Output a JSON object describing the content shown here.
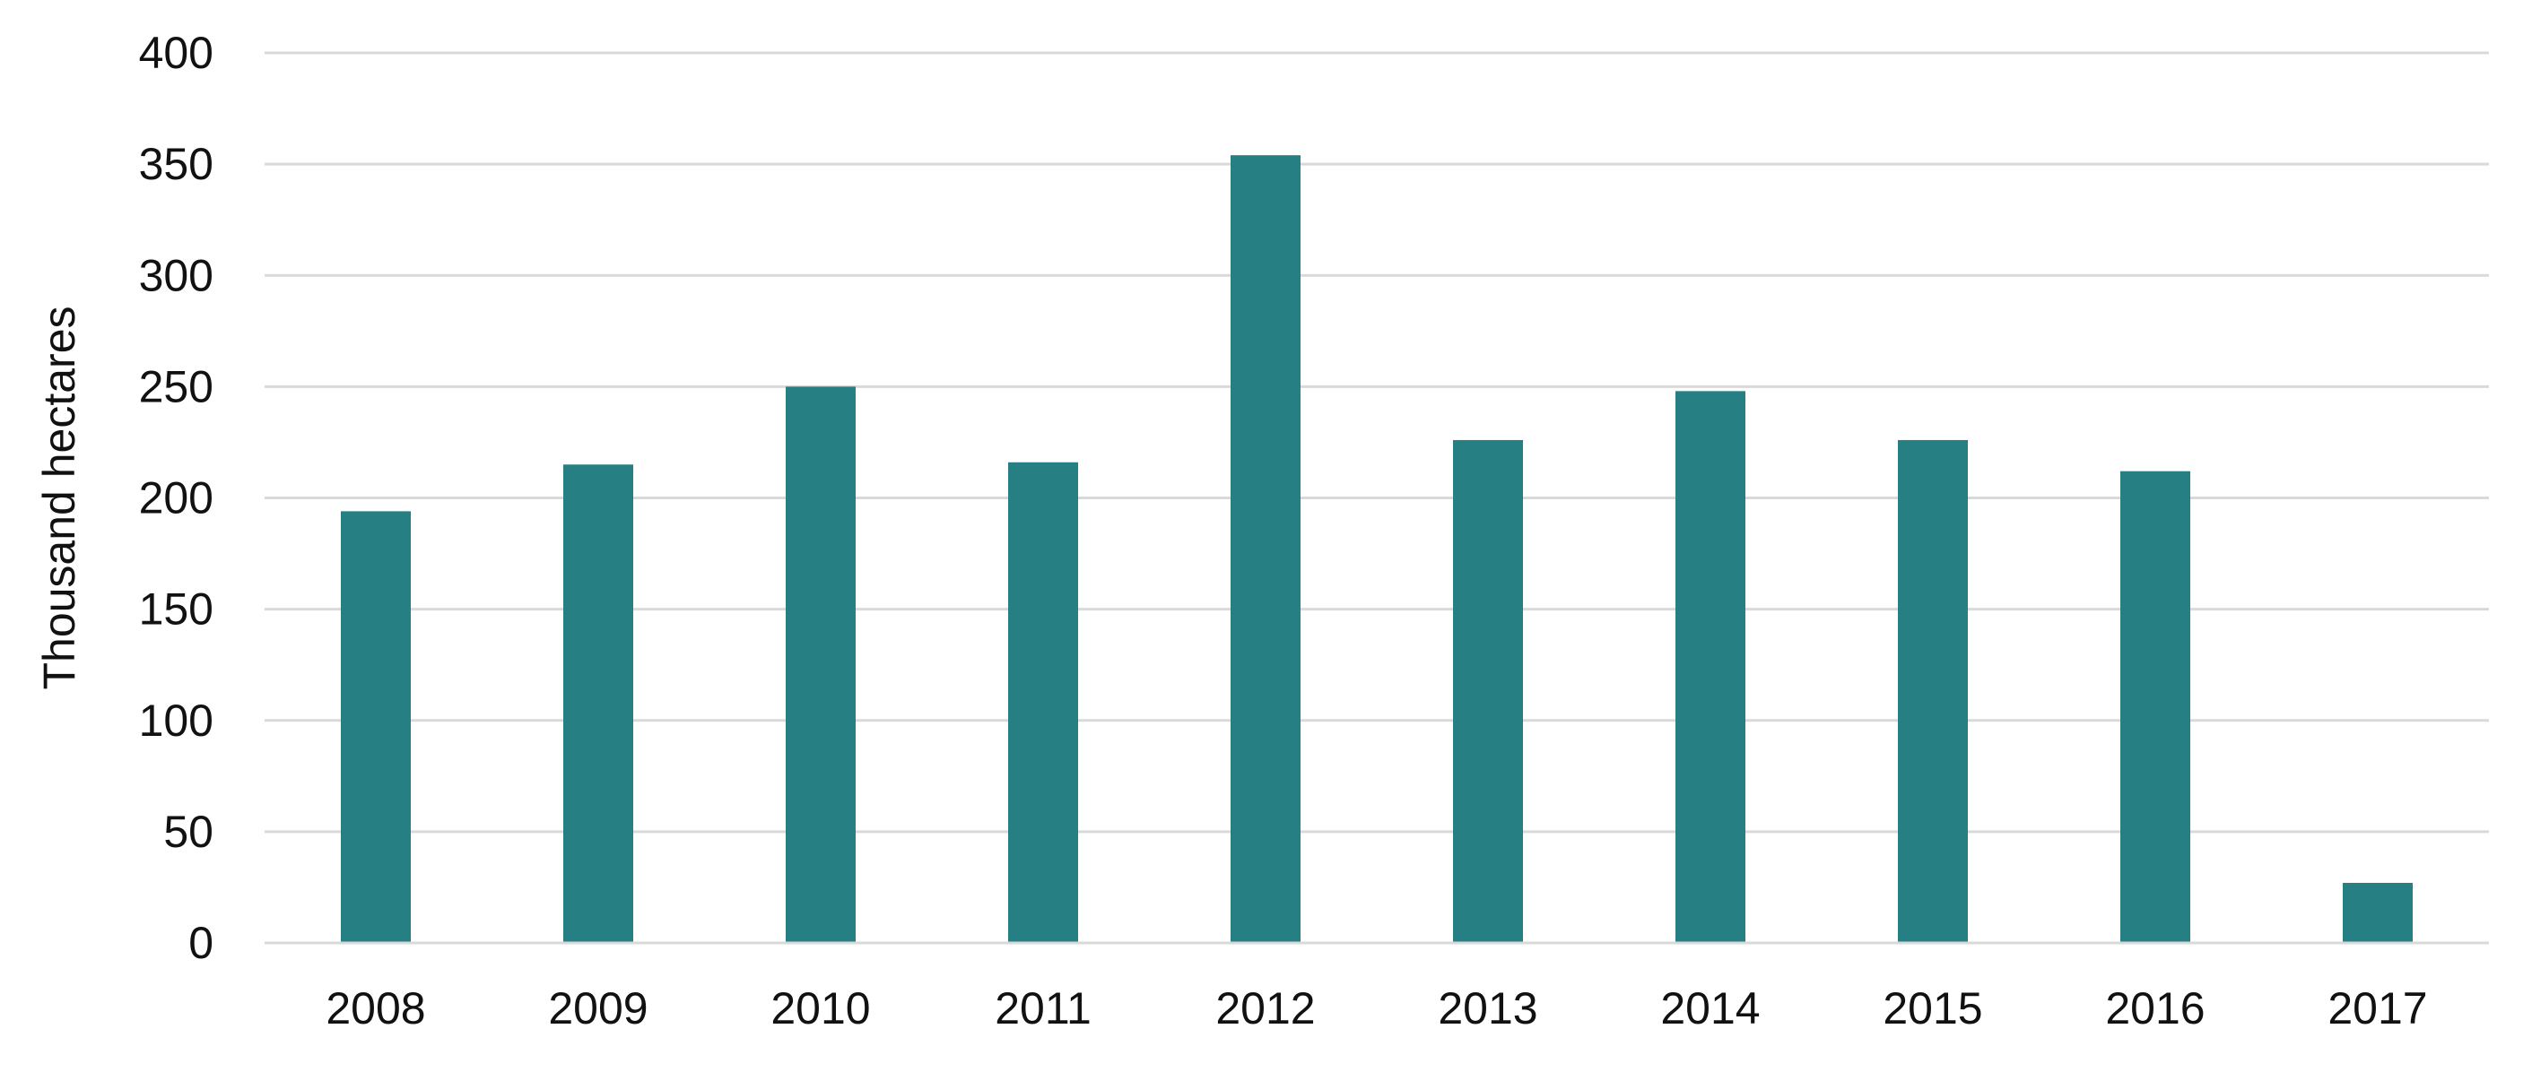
{
  "chart_data": {
    "type": "bar",
    "title": "",
    "xlabel": "",
    "ylabel": "Thousand hectares",
    "categories": [
      "2008",
      "2009",
      "2010",
      "2011",
      "2012",
      "2013",
      "2014",
      "2015",
      "2016",
      "2017"
    ],
    "series": [
      {
        "values": [
          194,
          215,
          250,
          216,
          354,
          226,
          248,
          226,
          212,
          27
        ],
        "color": "#267f82"
      }
    ],
    "ylim": [
      0,
      400
    ],
    "yticks": [
      0,
      50,
      100,
      150,
      200,
      250,
      300,
      350,
      400
    ],
    "grid": true,
    "legend": "none"
  }
}
